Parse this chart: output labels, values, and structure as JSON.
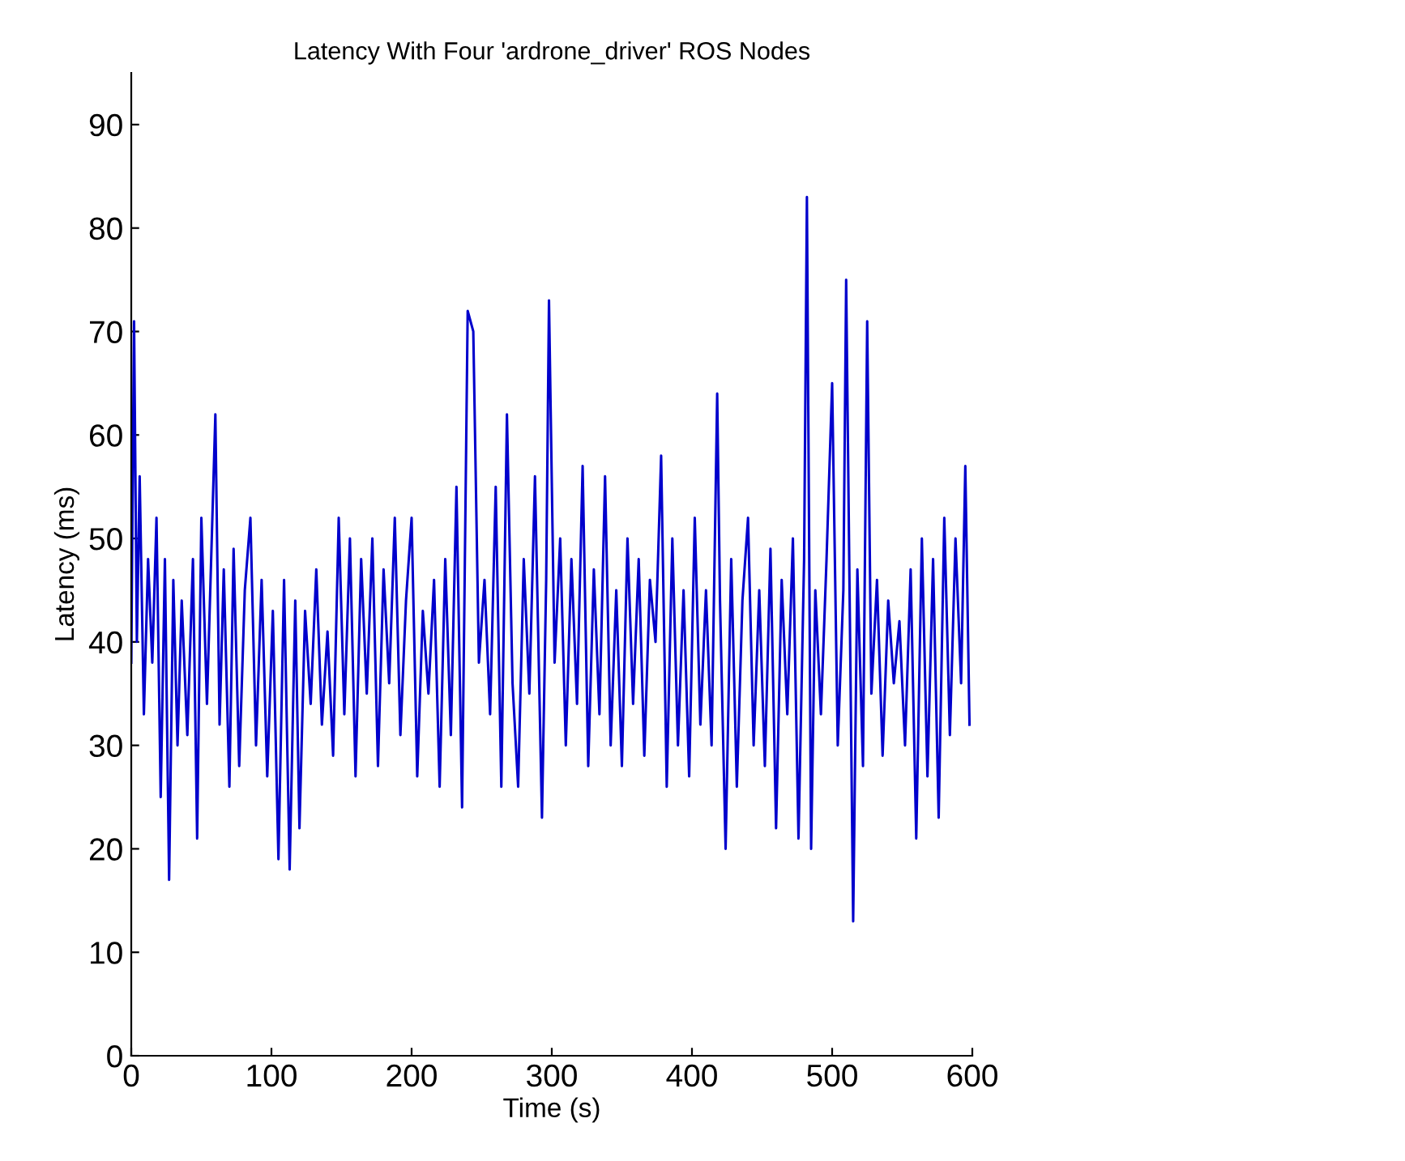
{
  "chart_data": {
    "type": "line",
    "title": "Latency With Four 'ardrone_driver' ROS Nodes",
    "xlabel": "Time (s)",
    "ylabel": "Latency (ms)",
    "xlim": [
      0,
      600
    ],
    "ylim": [
      0,
      95
    ],
    "xticks": [
      0,
      100,
      200,
      300,
      400,
      500,
      600
    ],
    "yticks": [
      0,
      10,
      20,
      30,
      40,
      50,
      60,
      70,
      80,
      90
    ],
    "grid": false,
    "legend": false,
    "series": [
      {
        "color": "#0000cc",
        "line_style": "solid",
        "marker": "none",
        "x": [
          0,
          2,
          4,
          6,
          9,
          12,
          15,
          18,
          21,
          24,
          27,
          30,
          33,
          36,
          40,
          44,
          47,
          50,
          54,
          57,
          60,
          63,
          66,
          70,
          73,
          77,
          81,
          85,
          89,
          93,
          97,
          101,
          105,
          109,
          113,
          117,
          120,
          124,
          128,
          132,
          136,
          140,
          144,
          148,
          152,
          156,
          160,
          164,
          168,
          172,
          176,
          180,
          184,
          188,
          192,
          196,
          200,
          204,
          208,
          212,
          216,
          220,
          224,
          228,
          232,
          236,
          240,
          244,
          248,
          252,
          256,
          260,
          264,
          268,
          272,
          276,
          280,
          284,
          288,
          293,
          296,
          298,
          302,
          306,
          310,
          314,
          318,
          322,
          326,
          330,
          334,
          338,
          342,
          346,
          350,
          354,
          358,
          362,
          366,
          370,
          374,
          378,
          382,
          386,
          390,
          394,
          398,
          402,
          406,
          410,
          414,
          418,
          420,
          424,
          428,
          432,
          436,
          440,
          444,
          448,
          452,
          456,
          460,
          464,
          468,
          472,
          476,
          480,
          482,
          485,
          488,
          492,
          496,
          500,
          504,
          508,
          510,
          513,
          515,
          518,
          522,
          525,
          528,
          532,
          536,
          540,
          544,
          548,
          552,
          556,
          560,
          564,
          568,
          572,
          576,
          580,
          584,
          588,
          592,
          595,
          598
        ],
        "values": [
          38,
          71,
          40,
          56,
          33,
          48,
          38,
          52,
          25,
          48,
          17,
          46,
          30,
          44,
          31,
          48,
          21,
          52,
          34,
          48,
          62,
          32,
          47,
          26,
          49,
          28,
          45,
          52,
          30,
          46,
          27,
          43,
          19,
          46,
          18,
          44,
          22,
          43,
          34,
          47,
          32,
          41,
          29,
          52,
          33,
          50,
          27,
          48,
          35,
          50,
          28,
          47,
          36,
          52,
          31,
          44,
          52,
          27,
          43,
          35,
          46,
          26,
          48,
          31,
          55,
          24,
          72,
          70,
          38,
          46,
          33,
          55,
          26,
          62,
          36,
          26,
          48,
          35,
          56,
          23,
          46,
          73,
          38,
          50,
          30,
          48,
          34,
          57,
          28,
          47,
          33,
          56,
          30,
          45,
          28,
          50,
          34,
          48,
          29,
          46,
          40,
          58,
          26,
          50,
          30,
          45,
          27,
          52,
          32,
          45,
          30,
          64,
          44,
          20,
          48,
          26,
          44,
          52,
          30,
          45,
          28,
          49,
          22,
          46,
          33,
          50,
          21,
          48,
          83,
          20,
          45,
          33,
          48,
          65,
          30,
          45,
          75,
          38,
          13,
          47,
          28,
          71,
          35,
          46,
          29,
          44,
          36,
          42,
          30,
          47,
          21,
          50,
          27,
          48,
          23,
          52,
          31,
          50,
          36,
          57,
          32
        ]
      }
    ]
  }
}
